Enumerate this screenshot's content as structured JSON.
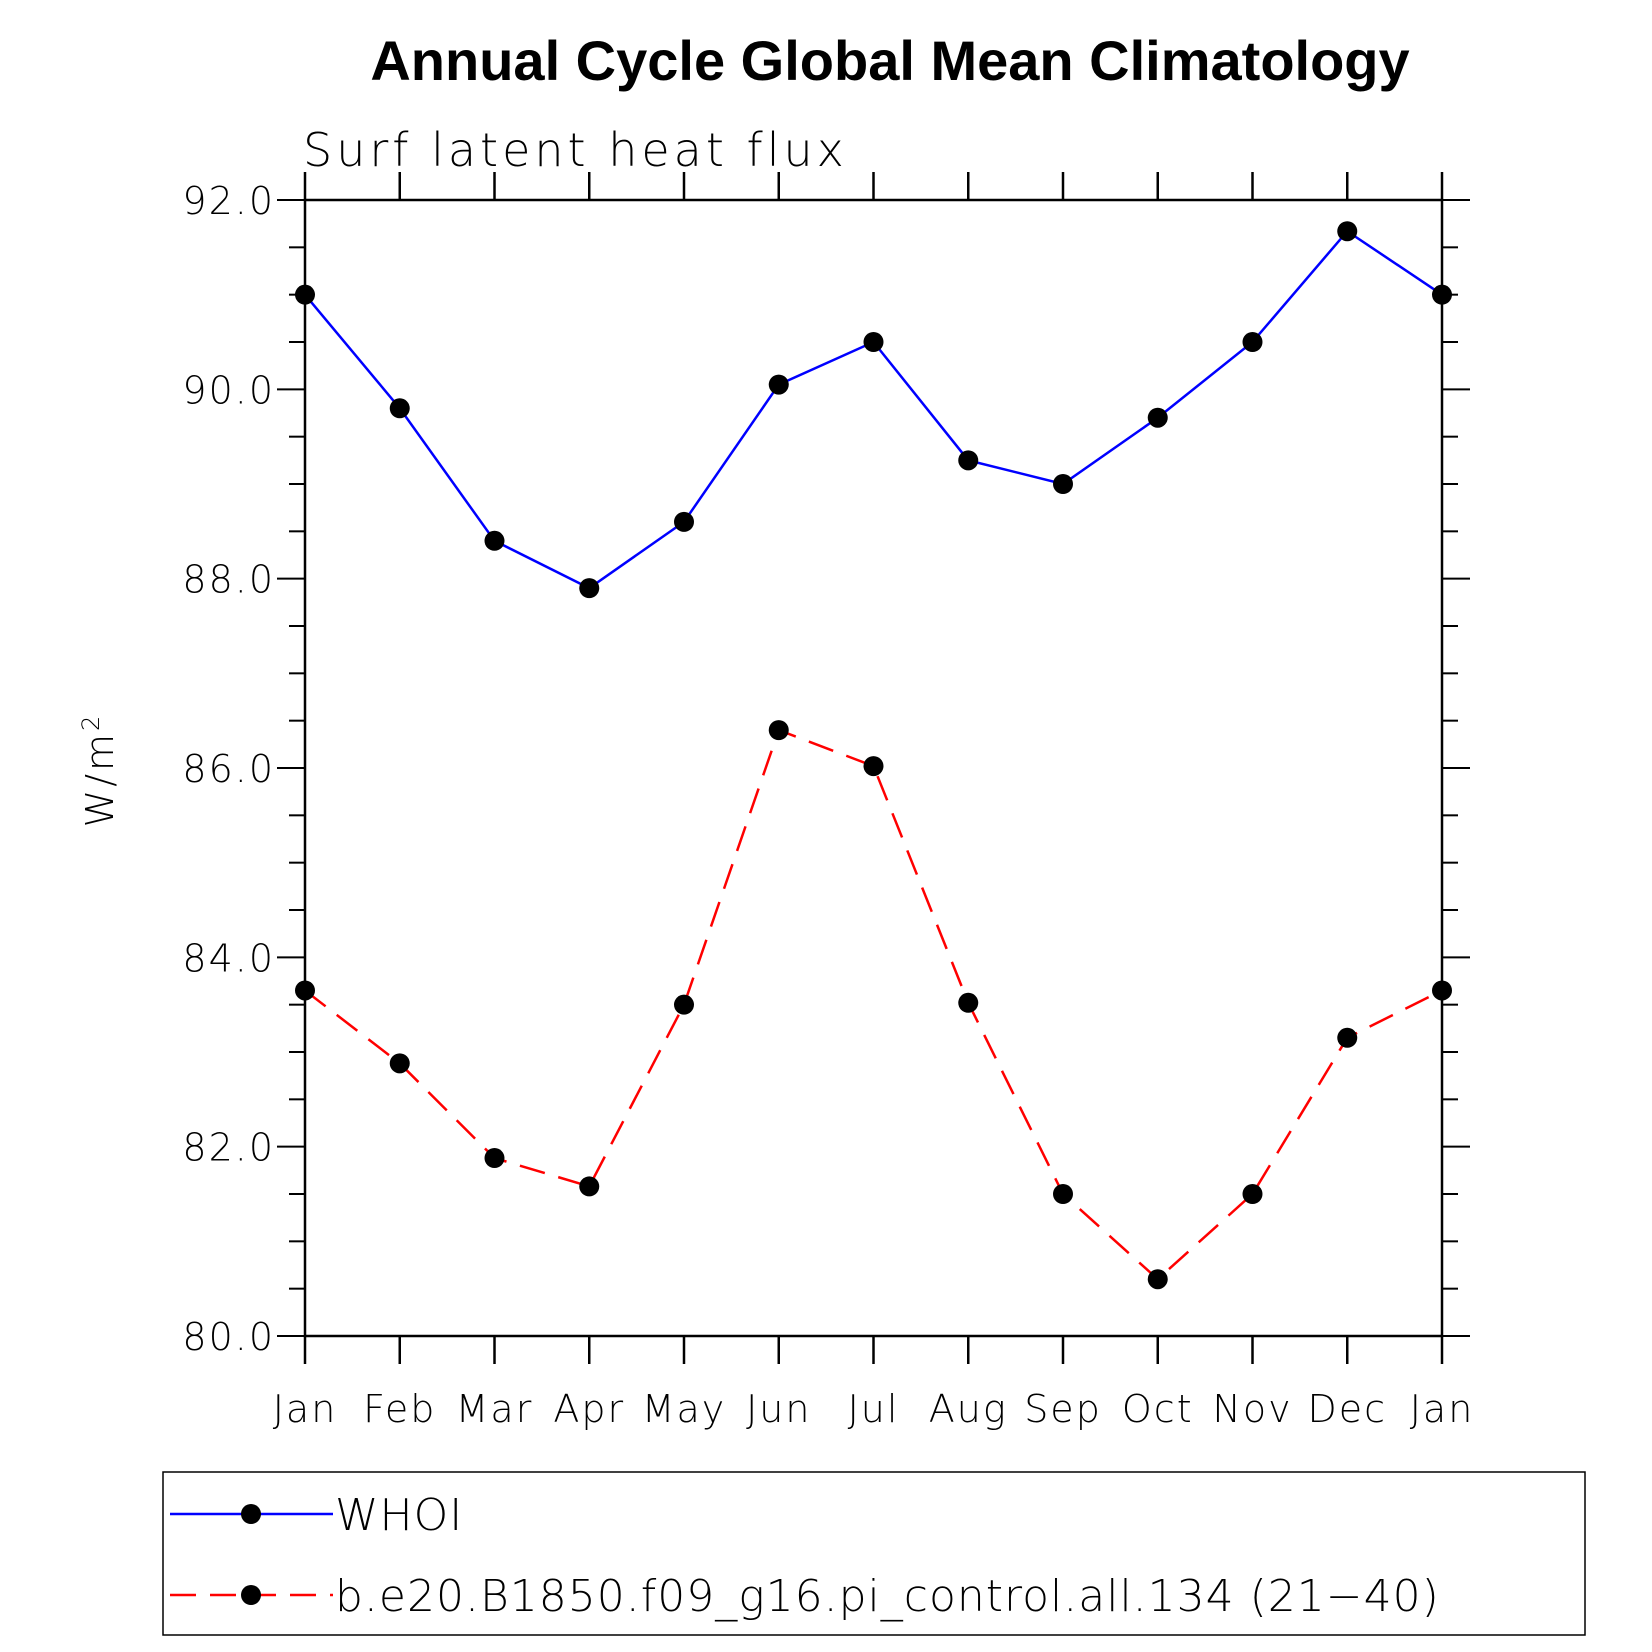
{
  "chart_data": {
    "type": "line",
    "title": "Annual Cycle Global Mean Climatology",
    "subtitle": "Surf latent heat flux",
    "ylabel": "W/m",
    "ylabel_sup": "2",
    "xlabel": "",
    "categories": [
      "Jan",
      "Feb",
      "Mar",
      "Apr",
      "May",
      "Jun",
      "Jul",
      "Aug",
      "Sep",
      "Oct",
      "Nov",
      "Dec",
      "Jan"
    ],
    "ylim": [
      80.0,
      92.0
    ],
    "yticks": [
      "80.0",
      "82.0",
      "84.0",
      "86.0",
      "88.0",
      "90.0",
      "92.0"
    ],
    "grid": false,
    "legend_position": "bottom",
    "series": [
      {
        "name": "WHOI",
        "color": "#0000ff",
        "dash": "solid",
        "marker": "filled-circle",
        "values": [
          91.0,
          89.8,
          88.4,
          87.9,
          88.6,
          90.05,
          90.5,
          89.25,
          89.0,
          89.7,
          90.5,
          91.67,
          91.0
        ]
      },
      {
        "name": "b.e20.B1850.f09_g16.pi_control.all.134 (21−40)",
        "color": "#ff0000",
        "dash": "dashed",
        "marker": "filled-circle",
        "values": [
          83.65,
          82.88,
          81.88,
          81.58,
          83.5,
          86.4,
          86.02,
          83.52,
          81.5,
          80.6,
          81.5,
          83.15,
          83.65
        ]
      }
    ]
  }
}
